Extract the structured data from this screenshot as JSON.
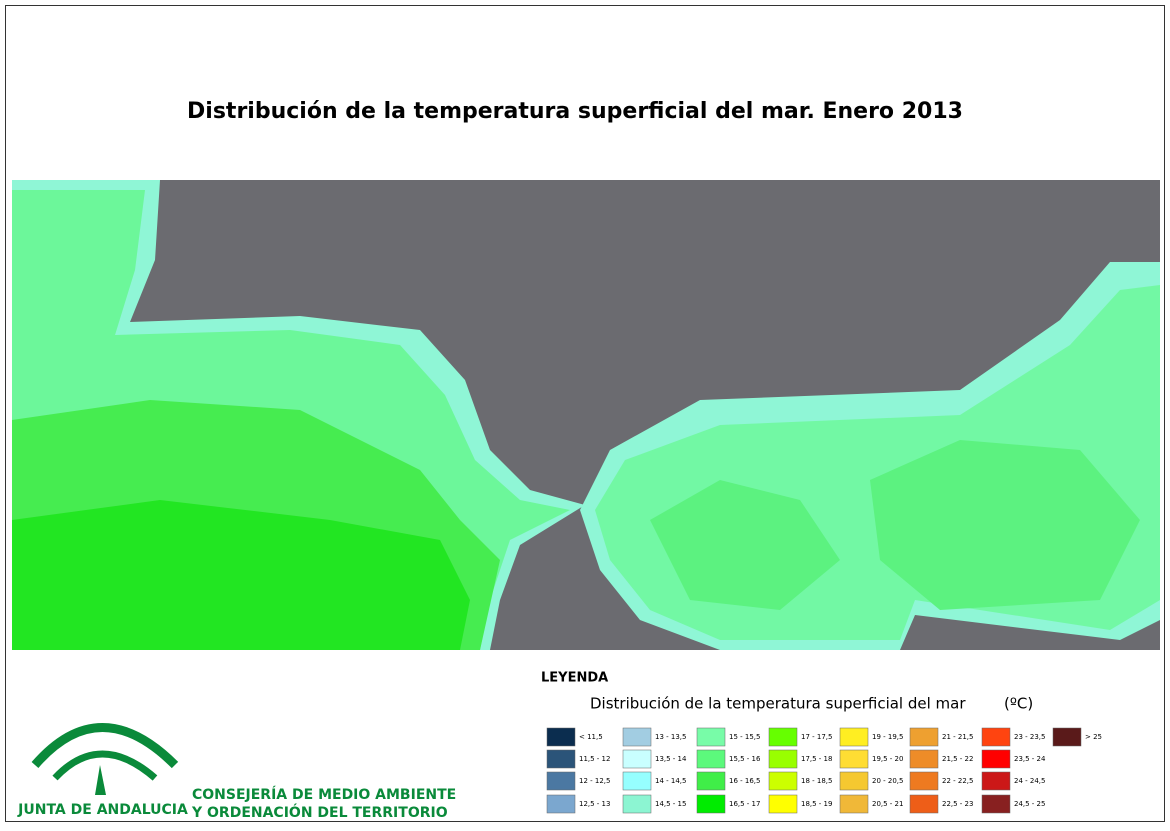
{
  "header": {
    "title": "Distribución de la temperatura superficial del mar. Enero 2013"
  },
  "legend": {
    "heading": "LEYENDA",
    "subtitle": "Distribución de la temperatura superficial del mar",
    "unit": "(ºC)",
    "items": [
      {
        "label": "< 11,5",
        "color": "#0b2d4f"
      },
      {
        "label": "11,5 - 12",
        "color": "#2b5479"
      },
      {
        "label": "12 - 12,5",
        "color": "#4b78a2"
      },
      {
        "label": "12,5 - 13",
        "color": "#7ba7cf"
      },
      {
        "label": "13 - 13,5",
        "color": "#a2cde2"
      },
      {
        "label": "13,5 - 14",
        "color": "#c9ffff"
      },
      {
        "label": "14 - 14,5",
        "color": "#96ffff"
      },
      {
        "label": "14,5 - 15",
        "color": "#8cf5d2"
      },
      {
        "label": "15 - 15,5",
        "color": "#78fca8"
      },
      {
        "label": "15,5 - 16",
        "color": "#5cf97c"
      },
      {
        "label": "16 - 16,5",
        "color": "#40ee48"
      },
      {
        "label": "16,5 - 17",
        "color": "#00ec00"
      },
      {
        "label": "17 - 17,5",
        "color": "#66ff00"
      },
      {
        "label": "17,5 - 18",
        "color": "#99ff00"
      },
      {
        "label": "18 - 18,5",
        "color": "#ccff00"
      },
      {
        "label": "18,5 - 19",
        "color": "#ffff00"
      },
      {
        "label": "19 - 19,5",
        "color": "#ffee22"
      },
      {
        "label": "19,5 - 20",
        "color": "#ffdd33"
      },
      {
        "label": "20 - 20,5",
        "color": "#f5c830"
      },
      {
        "label": "20,5 - 21",
        "color": "#f0b838"
      },
      {
        "label": "21 - 21,5",
        "color": "#eea030"
      },
      {
        "label": "21,5 - 22",
        "color": "#ee8c28"
      },
      {
        "label": "22 - 22,5",
        "color": "#ee7a20"
      },
      {
        "label": "22,5 - 23",
        "color": "#ee5e18"
      },
      {
        "label": "23 - 23,5",
        "color": "#ff4410"
      },
      {
        "label": "23,5 - 24",
        "color": "#ff0000"
      },
      {
        "label": "24 - 24,5",
        "color": "#cc1818"
      },
      {
        "label": "24,5 - 25",
        "color": "#882020"
      },
      {
        "label": "> 25",
        "color": "#5a1a1a"
      }
    ]
  },
  "footer": {
    "logo": "JUNTA DE ANDALUCIA",
    "org_line1": "CONSEJERÍA DE MEDIO AMBIENTE",
    "org_line2": "Y ORDENACIÓN DEL TERRITORIO"
  }
}
